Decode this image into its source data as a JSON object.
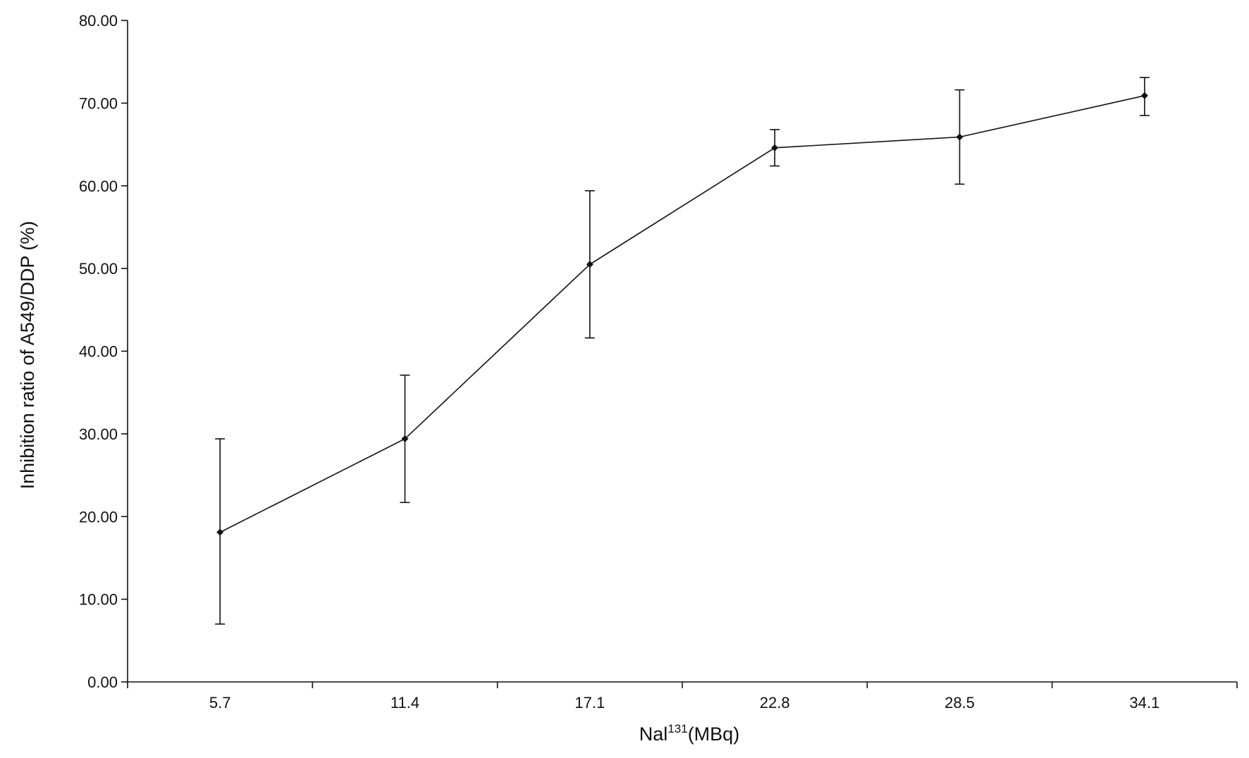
{
  "chart_data": {
    "type": "line",
    "title": "",
    "xlabel": {
      "base": "Nal",
      "superscript": "131",
      "suffix": "(MBq)"
    },
    "ylabel": "Inhibition ratio of A549/DDP (%)",
    "categories": [
      "5.7",
      "11.4",
      "17.1",
      "22.8",
      "28.5",
      "34.1"
    ],
    "ylim": [
      0,
      80
    ],
    "yticks": [
      "0.00",
      "10.00",
      "20.00",
      "30.00",
      "40.00",
      "50.00",
      "60.00",
      "70.00",
      "80.00"
    ],
    "grid": false,
    "legend": "none",
    "series": [
      {
        "values": [
          18.1,
          29.4,
          50.5,
          64.6,
          65.9,
          70.9
        ],
        "error_low": [
          7.0,
          21.7,
          41.6,
          62.4,
          60.2,
          68.5
        ],
        "error_high": [
          29.4,
          37.1,
          59.4,
          66.8,
          71.6,
          73.1
        ]
      }
    ],
    "colors": {
      "line": "#111111",
      "axis": "#111111"
    }
  }
}
